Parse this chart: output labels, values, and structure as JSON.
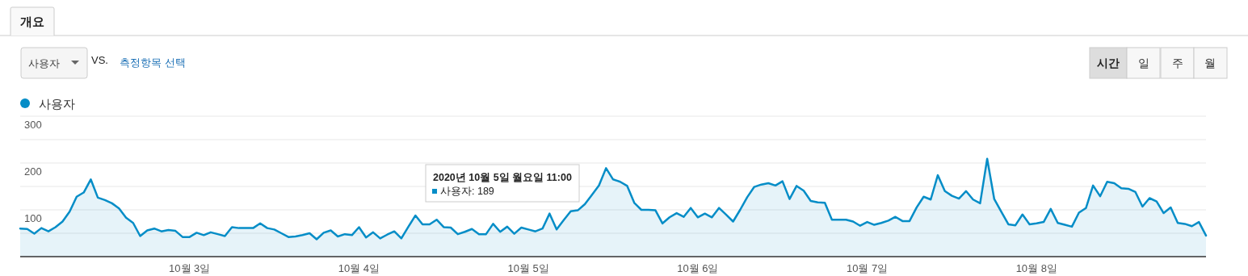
{
  "chart_data": {
    "type": "area",
    "x": [
      "2020-10-02T00:00",
      "2020-10-02T01:00",
      "2020-10-02T02:00",
      "2020-10-02T03:00",
      "2020-10-02T04:00",
      "2020-10-02T05:00",
      "2020-10-02T06:00",
      "2020-10-02T07:00",
      "2020-10-02T08:00",
      "2020-10-02T09:00",
      "2020-10-02T10:00",
      "2020-10-02T11:00",
      "2020-10-02T12:00",
      "2020-10-02T13:00",
      "2020-10-02T14:00",
      "2020-10-02T15:00",
      "2020-10-02T16:00",
      "2020-10-02T17:00",
      "2020-10-02T18:00",
      "2020-10-02T19:00",
      "2020-10-02T20:00",
      "2020-10-02T21:00",
      "2020-10-02T22:00",
      "2020-10-02T23:00",
      "2020-10-03T00:00",
      "2020-10-03T01:00",
      "2020-10-03T02:00",
      "2020-10-03T03:00",
      "2020-10-03T04:00",
      "2020-10-03T05:00",
      "2020-10-03T06:00",
      "2020-10-03T07:00",
      "2020-10-03T08:00",
      "2020-10-03T09:00",
      "2020-10-03T10:00",
      "2020-10-03T11:00",
      "2020-10-03T12:00",
      "2020-10-03T13:00",
      "2020-10-03T14:00",
      "2020-10-03T15:00",
      "2020-10-03T16:00",
      "2020-10-03T17:00",
      "2020-10-03T18:00",
      "2020-10-03T19:00",
      "2020-10-03T20:00",
      "2020-10-03T21:00",
      "2020-10-03T22:00",
      "2020-10-03T23:00",
      "2020-10-04T00:00",
      "2020-10-04T01:00",
      "2020-10-04T02:00",
      "2020-10-04T03:00",
      "2020-10-04T04:00",
      "2020-10-04T05:00",
      "2020-10-04T06:00",
      "2020-10-04T07:00",
      "2020-10-04T08:00",
      "2020-10-04T09:00",
      "2020-10-04T10:00",
      "2020-10-04T11:00",
      "2020-10-04T12:00",
      "2020-10-04T13:00",
      "2020-10-04T14:00",
      "2020-10-04T15:00",
      "2020-10-04T16:00",
      "2020-10-04T17:00",
      "2020-10-04T18:00",
      "2020-10-04T19:00",
      "2020-10-04T20:00",
      "2020-10-04T21:00",
      "2020-10-04T22:00",
      "2020-10-04T23:00",
      "2020-10-05T00:00",
      "2020-10-05T01:00",
      "2020-10-05T02:00",
      "2020-10-05T03:00",
      "2020-10-05T04:00",
      "2020-10-05T05:00",
      "2020-10-05T06:00",
      "2020-10-05T07:00",
      "2020-10-05T08:00",
      "2020-10-05T09:00",
      "2020-10-05T10:00",
      "2020-10-05T11:00",
      "2020-10-05T12:00",
      "2020-10-05T13:00",
      "2020-10-05T14:00",
      "2020-10-05T15:00",
      "2020-10-05T16:00",
      "2020-10-05T17:00",
      "2020-10-05T18:00",
      "2020-10-05T19:00",
      "2020-10-05T20:00",
      "2020-10-05T21:00",
      "2020-10-05T22:00",
      "2020-10-05T23:00",
      "2020-10-06T00:00",
      "2020-10-06T01:00",
      "2020-10-06T02:00",
      "2020-10-06T03:00",
      "2020-10-06T04:00",
      "2020-10-06T05:00",
      "2020-10-06T06:00",
      "2020-10-06T07:00",
      "2020-10-06T08:00",
      "2020-10-06T09:00",
      "2020-10-06T10:00",
      "2020-10-06T11:00",
      "2020-10-06T12:00",
      "2020-10-06T13:00",
      "2020-10-06T14:00",
      "2020-10-06T15:00",
      "2020-10-06T16:00",
      "2020-10-06T17:00",
      "2020-10-06T18:00",
      "2020-10-06T19:00",
      "2020-10-06T20:00",
      "2020-10-06T21:00",
      "2020-10-06T22:00",
      "2020-10-06T23:00",
      "2020-10-07T00:00",
      "2020-10-07T01:00",
      "2020-10-07T02:00",
      "2020-10-07T03:00",
      "2020-10-07T04:00",
      "2020-10-07T05:00",
      "2020-10-07T06:00",
      "2020-10-07T07:00",
      "2020-10-07T08:00",
      "2020-10-07T09:00",
      "2020-10-07T10:00",
      "2020-10-07T11:00",
      "2020-10-07T12:00",
      "2020-10-07T13:00",
      "2020-10-07T14:00",
      "2020-10-07T15:00",
      "2020-10-07T16:00",
      "2020-10-07T17:00",
      "2020-10-07T18:00",
      "2020-10-07T19:00",
      "2020-10-07T20:00",
      "2020-10-07T21:00",
      "2020-10-07T22:00",
      "2020-10-07T23:00",
      "2020-10-08T00:00",
      "2020-10-08T01:00",
      "2020-10-08T02:00",
      "2020-10-08T03:00",
      "2020-10-08T04:00",
      "2020-10-08T05:00",
      "2020-10-08T06:00",
      "2020-10-08T07:00",
      "2020-10-08T08:00",
      "2020-10-08T09:00",
      "2020-10-08T10:00",
      "2020-10-08T11:00",
      "2020-10-08T12:00",
      "2020-10-08T13:00",
      "2020-10-08T14:00",
      "2020-10-08T15:00",
      "2020-10-08T16:00",
      "2020-10-08T17:00",
      "2020-10-08T18:00",
      "2020-10-08T19:00",
      "2020-10-08T20:00",
      "2020-10-08T21:00",
      "2020-10-08T22:00",
      "2020-10-08T23:00",
      "2020-10-09T00:00"
    ],
    "series": [
      {
        "name": "사용자",
        "color": "#058dc7",
        "values": [
          60,
          59,
          49,
          61,
          54,
          63,
          75,
          96,
          128,
          137,
          165,
          126,
          121,
          114,
          103,
          83,
          72,
          44,
          56,
          60,
          54,
          57,
          55,
          42,
          42,
          51,
          46,
          52,
          48,
          44,
          63,
          61,
          61,
          61,
          71,
          61,
          58,
          50,
          42,
          43,
          46,
          50,
          37,
          51,
          56,
          43,
          48,
          46,
          63,
          41,
          52,
          39,
          47,
          54,
          39,
          64,
          88,
          69,
          69,
          79,
          63,
          62,
          48,
          53,
          59,
          48,
          48,
          70,
          53,
          64,
          49,
          62,
          58,
          54,
          60,
          92,
          58,
          78,
          97,
          99,
          112,
          132,
          152,
          189,
          165,
          160,
          151,
          115,
          100,
          100,
          99,
          71,
          84,
          93,
          85,
          104,
          84,
          92,
          84,
          104,
          90,
          75,
          100,
          127,
          149,
          154,
          157,
          152,
          161,
          123,
          151,
          141,
          119,
          116,
          115,
          79,
          79,
          79,
          75,
          66,
          74,
          68,
          72,
          77,
          85,
          76,
          76,
          105,
          128,
          122,
          174,
          140,
          130,
          124,
          140,
          122,
          114,
          209,
          123,
          96,
          69,
          67,
          90,
          69,
          71,
          74,
          102,
          72,
          68,
          64,
          94,
          104,
          152,
          129,
          160,
          157,
          146,
          145,
          138,
          107,
          125,
          118,
          93,
          105,
          72,
          70,
          65,
          74,
          45
        ]
      }
    ],
    "ylim": [
      0,
      300
    ],
    "yticks": [
      {
        "value": 50,
        "label": null
      },
      100,
      {
        "value": 150,
        "label": null
      },
      200,
      {
        "value": 250,
        "label": null
      },
      300
    ],
    "xlim": [
      "2020-10-02T00:00",
      "2020-10-09T00:00"
    ],
    "xticks": [
      {
        "value": "2020-10-03T00:00",
        "label": "10월 3일"
      },
      {
        "value": "2020-10-04T00:00",
        "label": "10월 4일"
      },
      {
        "value": "2020-10-05T00:00",
        "label": "10월 5일"
      },
      {
        "value": "2020-10-06T00:00",
        "label": "10월 6일"
      },
      {
        "value": "2020-10-07T00:00",
        "label": "10월 7일"
      },
      {
        "value": "2020-10-08T00:00",
        "label": "10월 8일"
      }
    ],
    "grid": "y",
    "legend": "top left",
    "annotations": [
      "개요",
      "사용자",
      "VS.",
      "측정항목 선택",
      "시간",
      "일",
      "주",
      "월",
      "2020년 10월 5일 월요일 11:00",
      "사용자: 189"
    ]
  }
}
